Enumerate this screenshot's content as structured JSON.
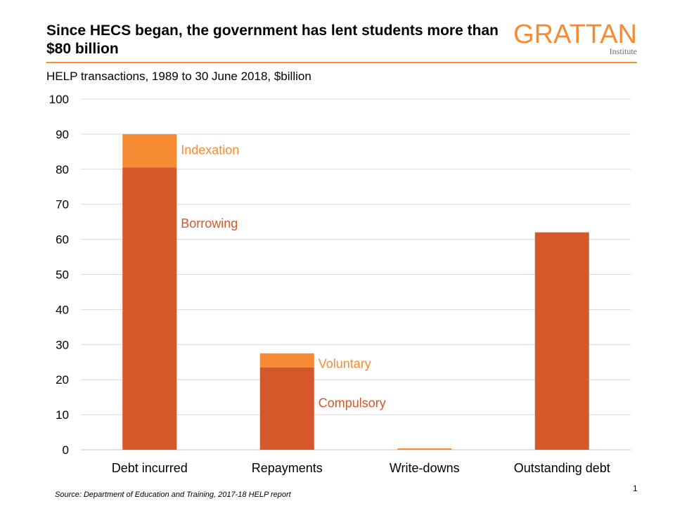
{
  "header": {
    "title": "Since HECS began, the government has lent students more than $80 billion",
    "subtitle": "HELP transactions, 1989 to 30 June 2018, $billion"
  },
  "logo": {
    "main": "GRATTAN",
    "sub": "Institute"
  },
  "footer": {
    "source": "Source: Department of Education and Training, 2017-18 HELP report",
    "page_number": "1"
  },
  "colors": {
    "accent": "#F68B33",
    "dark_orange": "#D4582A",
    "light_orange": "#F68B33",
    "grid": "#D9D9D9"
  },
  "chart_data": {
    "type": "bar",
    "stacked": true,
    "categories": [
      "Debt incurred",
      "Repayments",
      "Write-downs",
      "Outstanding debt"
    ],
    "series": [
      {
        "name": "Borrowing",
        "color": "#D4582A",
        "values": [
          80.5,
          0,
          0,
          62
        ]
      },
      {
        "name": "Indexation",
        "color": "#F68B33",
        "values": [
          9.5,
          0,
          0,
          0
        ]
      },
      {
        "name": "Compulsory",
        "color": "#D4582A",
        "values": [
          0,
          23.5,
          0,
          0
        ]
      },
      {
        "name": "Voluntary",
        "color": "#F68B33",
        "values": [
          0,
          4,
          0.4,
          0
        ]
      }
    ],
    "ylim": [
      0,
      100
    ],
    "yticks": [
      0,
      10,
      20,
      30,
      40,
      50,
      60,
      70,
      80,
      90,
      100
    ],
    "grid": true,
    "annotations": [
      {
        "text": "Indexation",
        "color": "#F68B33",
        "category": "Debt incurred",
        "y": 85.5
      },
      {
        "text": "Borrowing",
        "color": "#D4582A",
        "category": "Debt incurred",
        "y": 64.5
      },
      {
        "text": "Voluntary",
        "color": "#F68B33",
        "category": "Repayments",
        "y": 24.5
      },
      {
        "text": "Compulsory",
        "color": "#D4582A",
        "category": "Repayments",
        "y": 13.3
      }
    ]
  }
}
